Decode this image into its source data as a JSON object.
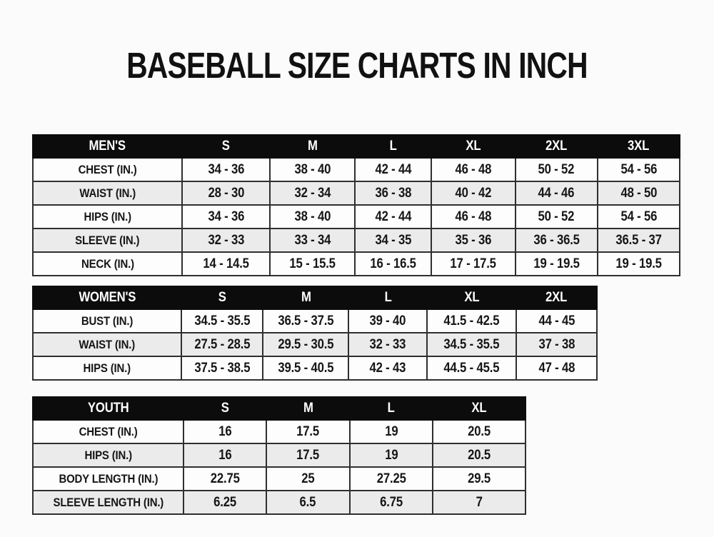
{
  "page": {
    "title": "BASEBALL SIZE CHARTS IN INCH",
    "unit": "inches",
    "colors": {
      "background": "#fbfbfb",
      "header_bg": "#0c0c0c",
      "header_text": "#ffffff",
      "row_bg": "#fdfdfd",
      "row_alt_bg": "#ebebeb",
      "border": "#2f2f2f",
      "text": "#121212"
    }
  },
  "chart_data": [
    {
      "id": "mens",
      "type": "table",
      "title": "MEN'S",
      "header": [
        "MEN'S",
        "S",
        "M",
        "L",
        "XL",
        "2XL",
        "3XL"
      ],
      "rows": [
        {
          "label": "CHEST (IN.)",
          "values": [
            "34 - 36",
            "38 - 40",
            "42 - 44",
            "46 - 48",
            "50 - 52",
            "54 - 56"
          ]
        },
        {
          "label": "WAIST (IN.)",
          "values": [
            "28 - 30",
            "32 - 34",
            "36 - 38",
            "40 - 42",
            "44 - 46",
            "48 - 50"
          ]
        },
        {
          "label": "HIPS (IN.)",
          "values": [
            "34 - 36",
            "38 - 40",
            "42 - 44",
            "46 - 48",
            "50 - 52",
            "54 - 56"
          ]
        },
        {
          "label": "SLEEVE (IN.)",
          "values": [
            "32 - 33",
            "33 - 34",
            "34 - 35",
            "35 - 36",
            "36 - 36.5",
            "36.5 - 37"
          ]
        },
        {
          "label": "NECK (IN.)",
          "values": [
            "14 - 14.5",
            "15 - 15.5",
            "16 - 16.5",
            "17 - 17.5",
            "19 - 19.5",
            "19 - 19.5"
          ]
        }
      ]
    },
    {
      "id": "womens",
      "type": "table",
      "title": "WOMEN'S",
      "header": [
        "WOMEN'S",
        "S",
        "M",
        "L",
        "XL",
        "2XL"
      ],
      "rows": [
        {
          "label": "BUST (IN.)",
          "values": [
            "34.5 - 35.5",
            "36.5 - 37.5",
            "39 - 40",
            "41.5 - 42.5",
            "44 - 45"
          ]
        },
        {
          "label": "WAIST (IN.)",
          "values": [
            "27.5 - 28.5",
            "29.5 - 30.5",
            "32 - 33",
            "34.5 - 35.5",
            "37 - 38"
          ]
        },
        {
          "label": "HIPS (IN.)",
          "values": [
            "37.5 - 38.5",
            "39.5 - 40.5",
            "42 - 43",
            "44.5 - 45.5",
            "47 - 48"
          ]
        }
      ]
    },
    {
      "id": "youth",
      "type": "table",
      "title": "YOUTH",
      "header": [
        "YOUTH",
        "S",
        "M",
        "L",
        "XL"
      ],
      "rows": [
        {
          "label": "CHEST (IN.)",
          "values": [
            "16",
            "17.5",
            "19",
            "20.5"
          ]
        },
        {
          "label": "HIPS (IN.)",
          "values": [
            "16",
            "17.5",
            "19",
            "20.5"
          ]
        },
        {
          "label": "BODY LENGTH (IN.)",
          "values": [
            "22.75",
            "25",
            "27.25",
            "29.5"
          ]
        },
        {
          "label": "SLEEVE LENGTH (IN.)",
          "values": [
            "6.25",
            "6.5",
            "6.75",
            "7"
          ]
        }
      ]
    }
  ]
}
